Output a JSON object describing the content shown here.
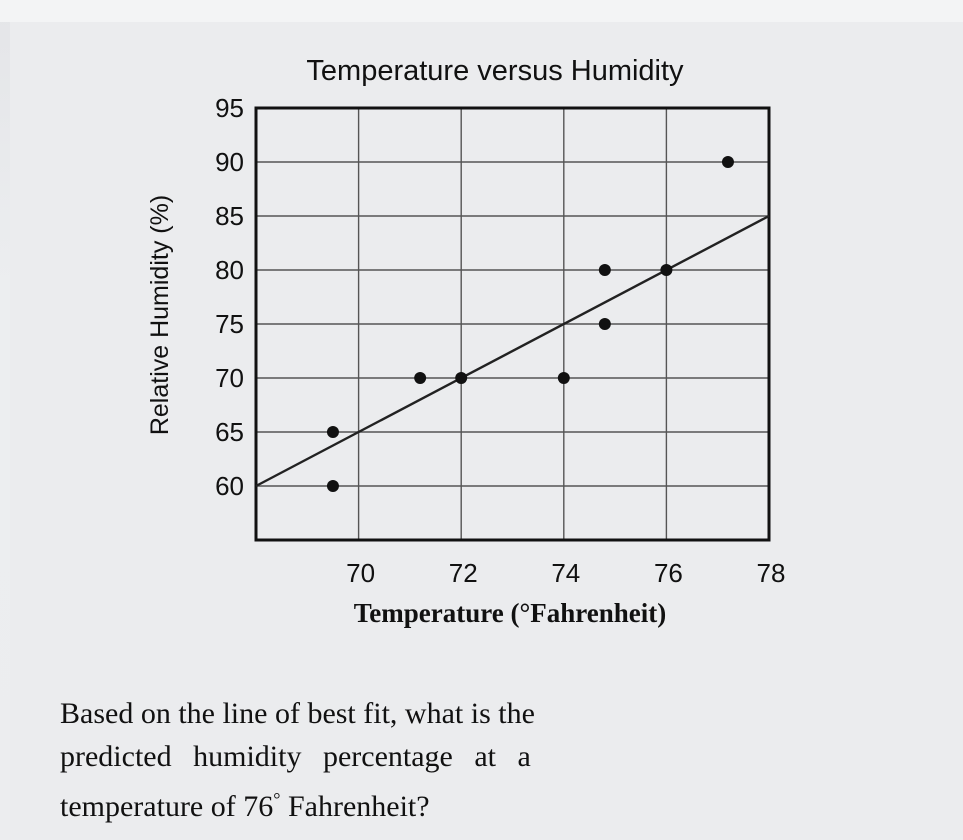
{
  "chart_data": {
    "type": "scatter",
    "title": "Temperature versus Humidity",
    "xlabel": "Temperature (°Fahrenheit)",
    "ylabel": "Relative Humidity (%)",
    "xlim": [
      68,
      78
    ],
    "ylim": [
      55,
      95
    ],
    "x_ticks": [
      70,
      72,
      74,
      76,
      78
    ],
    "y_ticks": [
      95,
      90,
      85,
      80,
      75,
      70,
      65,
      60
    ],
    "grid": true,
    "legend": "none",
    "points": [
      {
        "x": 69.5,
        "y": 60
      },
      {
        "x": 69.5,
        "y": 65
      },
      {
        "x": 71.2,
        "y": 70
      },
      {
        "x": 72,
        "y": 70
      },
      {
        "x": 74,
        "y": 70
      },
      {
        "x": 74.8,
        "y": 75
      },
      {
        "x": 74.8,
        "y": 80
      },
      {
        "x": 76,
        "y": 80
      },
      {
        "x": 77.2,
        "y": 90
      }
    ],
    "best_fit_line": {
      "x1": 68,
      "y1": 60,
      "x2": 78,
      "y2": 85
    },
    "colors": {
      "points": "#111111",
      "line": "#222222",
      "grid": "#555555"
    }
  },
  "question": {
    "line1": "Based on the line of best fit, what is the",
    "line2": "predicted humidity percentage at a",
    "line3_start": "temperature of 76",
    "degree": "°",
    "line3_end": " Fahrenheit?"
  }
}
